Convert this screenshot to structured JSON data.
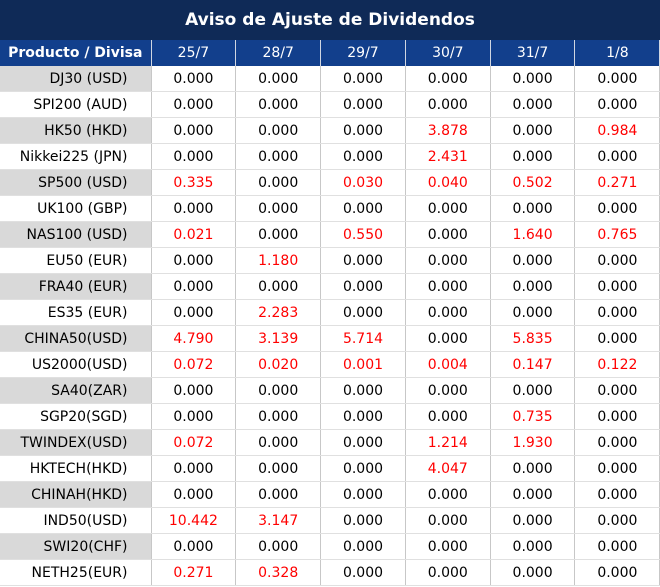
{
  "title": "Aviso de Ajuste de Dividendos",
  "header": {
    "product_label": "Producto / Divisa",
    "dates": [
      "25/7",
      "28/7",
      "29/7",
      "30/7",
      "31/7",
      "1/8"
    ]
  },
  "colors": {
    "title_bg": "#0f2a57",
    "header_bg": "#123f8c",
    "shaded_cell": "#d9d9d9",
    "nonzero_value": "#ff0000",
    "zero_value": "#000000"
  },
  "rows": [
    {
      "product": "DJ30 (USD)",
      "values": [
        "0.000",
        "0.000",
        "0.000",
        "0.000",
        "0.000",
        "0.000"
      ]
    },
    {
      "product": "SPI200 (AUD)",
      "values": [
        "0.000",
        "0.000",
        "0.000",
        "0.000",
        "0.000",
        "0.000"
      ]
    },
    {
      "product": "HK50 (HKD)",
      "values": [
        "0.000",
        "0.000",
        "0.000",
        "3.878",
        "0.000",
        "0.984"
      ]
    },
    {
      "product": "Nikkei225 (JPN)",
      "values": [
        "0.000",
        "0.000",
        "0.000",
        "2.431",
        "0.000",
        "0.000"
      ]
    },
    {
      "product": "SP500 (USD)",
      "values": [
        "0.335",
        "0.000",
        "0.030",
        "0.040",
        "0.502",
        "0.271"
      ]
    },
    {
      "product": "UK100 (GBP)",
      "values": [
        "0.000",
        "0.000",
        "0.000",
        "0.000",
        "0.000",
        "0.000"
      ]
    },
    {
      "product": "NAS100 (USD)",
      "values": [
        "0.021",
        "0.000",
        "0.550",
        "0.000",
        "1.640",
        "0.765"
      ]
    },
    {
      "product": "EU50 (EUR)",
      "values": [
        "0.000",
        "1.180",
        "0.000",
        "0.000",
        "0.000",
        "0.000"
      ]
    },
    {
      "product": "FRA40 (EUR)",
      "values": [
        "0.000",
        "0.000",
        "0.000",
        "0.000",
        "0.000",
        "0.000"
      ]
    },
    {
      "product": "ES35 (EUR)",
      "values": [
        "0.000",
        "2.283",
        "0.000",
        "0.000",
        "0.000",
        "0.000"
      ]
    },
    {
      "product": "CHINA50(USD)",
      "values": [
        "4.790",
        "3.139",
        "5.714",
        "0.000",
        "5.835",
        "0.000"
      ]
    },
    {
      "product": "US2000(USD)",
      "values": [
        "0.072",
        "0.020",
        "0.001",
        "0.004",
        "0.147",
        "0.122"
      ]
    },
    {
      "product": "SA40(ZAR)",
      "values": [
        "0.000",
        "0.000",
        "0.000",
        "0.000",
        "0.000",
        "0.000"
      ]
    },
    {
      "product": "SGP20(SGD)",
      "values": [
        "0.000",
        "0.000",
        "0.000",
        "0.000",
        "0.735",
        "0.000"
      ]
    },
    {
      "product": "TWINDEX(USD)",
      "values": [
        "0.072",
        "0.000",
        "0.000",
        "1.214",
        "1.930",
        "0.000"
      ]
    },
    {
      "product": "HKTECH(HKD)",
      "values": [
        "0.000",
        "0.000",
        "0.000",
        "4.047",
        "0.000",
        "0.000"
      ]
    },
    {
      "product": "CHINAH(HKD)",
      "values": [
        "0.000",
        "0.000",
        "0.000",
        "0.000",
        "0.000",
        "0.000"
      ]
    },
    {
      "product": "IND50(USD)",
      "values": [
        "10.442",
        "3.147",
        "0.000",
        "0.000",
        "0.000",
        "0.000"
      ]
    },
    {
      "product": "SWI20(CHF)",
      "values": [
        "0.000",
        "0.000",
        "0.000",
        "0.000",
        "0.000",
        "0.000"
      ]
    },
    {
      "product": "NETH25(EUR)",
      "values": [
        "0.271",
        "0.328",
        "0.000",
        "0.000",
        "0.000",
        "0.000"
      ]
    }
  ]
}
